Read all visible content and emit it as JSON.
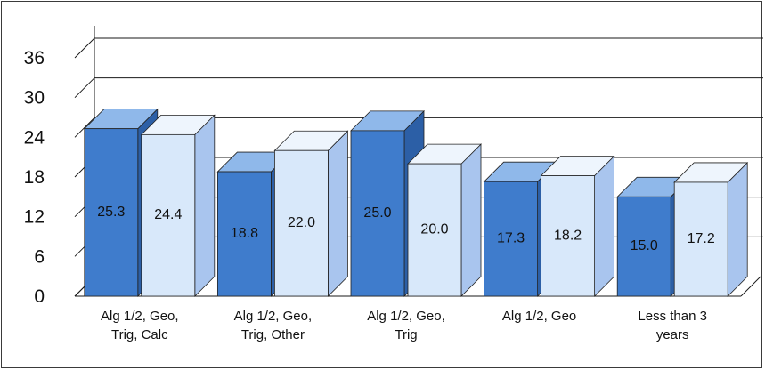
{
  "chart_data": {
    "type": "bar",
    "title": "",
    "xlabel": "",
    "ylabel": "",
    "ylim": [
      0,
      36
    ],
    "yticks": [
      0,
      6,
      12,
      18,
      24,
      30,
      36
    ],
    "grid": true,
    "legend": "none",
    "categories": [
      [
        "Alg 1/2, Geo,",
        "Trig, Calc"
      ],
      [
        "Alg 1/2, Geo,",
        "Trig, Other"
      ],
      [
        "Alg 1/2, Geo,",
        "Trig"
      ],
      [
        "Alg 1/2, Geo"
      ],
      [
        "Less than 3",
        "years"
      ]
    ],
    "series": [
      {
        "values": [
          25.3,
          18.8,
          25.0,
          17.3,
          15.0
        ],
        "labels": [
          "25.3",
          "18.8",
          "25.0",
          "17.3",
          "15.0"
        ]
      },
      {
        "values": [
          24.4,
          22.0,
          20.0,
          18.2,
          17.2
        ],
        "labels": [
          "24.4",
          "22.0",
          "20.0",
          "18.2",
          "17.2"
        ]
      }
    ],
    "colors": {
      "series1_front": "#3f7ccc",
      "series1_top": "#8fb8ea",
      "series1_side": "#2c5fa6",
      "series2_front": "#d8e8fa",
      "series2_top": "#eef5fd",
      "series2_side": "#a9c5ee",
      "wall_floor": "#ffffff",
      "gridline": "#1a1a1a"
    }
  }
}
